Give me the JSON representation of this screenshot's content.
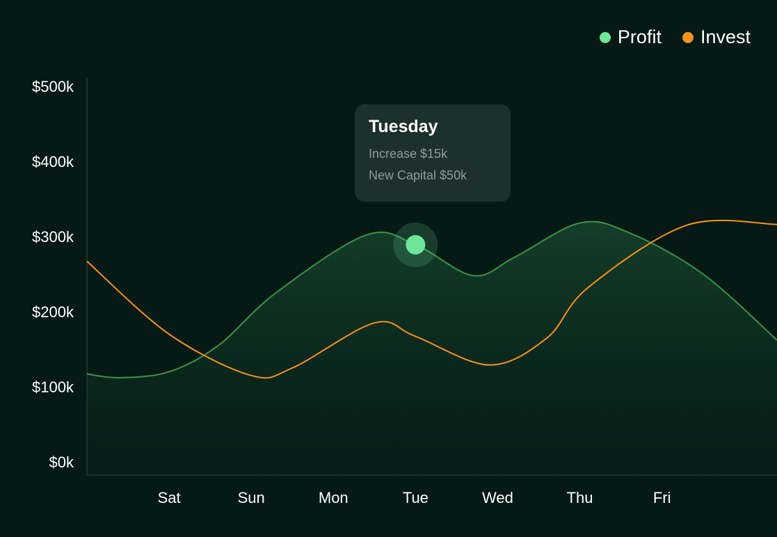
{
  "legend": {
    "profit_label": "Profit",
    "invest_label": "Invest"
  },
  "tooltip": {
    "title": "Tuesday",
    "increase": "Increase $15k",
    "new_capital": "New Capital $50k"
  },
  "colors": {
    "background": "#051915",
    "profit": "#6fe59a",
    "profit_line": "#3f9347",
    "invest": "#f7931e",
    "axis": "#2a3b37",
    "tooltip_bg": "#1d302c",
    "tooltip_text": "#8f9b98"
  },
  "chart_data": {
    "type": "line",
    "y_ticks": [
      "$0k",
      "$100k",
      "$200k",
      "$300k",
      "$400k",
      "$500k"
    ],
    "ylim": [
      0,
      500
    ],
    "x_ticks": [
      "Sat",
      "Sun",
      "Mon",
      "Tue",
      "Wed",
      "Thu",
      "Fri"
    ],
    "x_tick_positions": [
      1,
      2,
      3,
      4,
      5,
      6,
      7
    ],
    "xlim": [
      0,
      8.4
    ],
    "grid": false,
    "legend_position": "top-right",
    "series": [
      {
        "name": "Profit",
        "color": "#3f9347",
        "fill": true,
        "points": [
          [
            0,
            117
          ],
          [
            0.4,
            112
          ],
          [
            1.0,
            120
          ],
          [
            1.6,
            155
          ],
          [
            2.3,
            225
          ],
          [
            3.4,
            302
          ],
          [
            4.0,
            289
          ],
          [
            4.7,
            248
          ],
          [
            5.2,
            272
          ],
          [
            6.0,
            318
          ],
          [
            6.6,
            305
          ],
          [
            7.5,
            250
          ],
          [
            8.4,
            162
          ]
        ]
      },
      {
        "name": "Invest",
        "color": "#f7931e",
        "fill": false,
        "points": [
          [
            0,
            267
          ],
          [
            1.0,
            170
          ],
          [
            2.0,
            115
          ],
          [
            2.5,
            125
          ],
          [
            3.5,
            185
          ],
          [
            4.0,
            167
          ],
          [
            4.9,
            129
          ],
          [
            5.6,
            165
          ],
          [
            6.1,
            232
          ],
          [
            7.3,
            315
          ],
          [
            8.4,
            316
          ]
        ]
      }
    ],
    "highlight": {
      "series": "Profit",
      "x": 4.0,
      "y": 289,
      "label": "Tuesday"
    }
  }
}
